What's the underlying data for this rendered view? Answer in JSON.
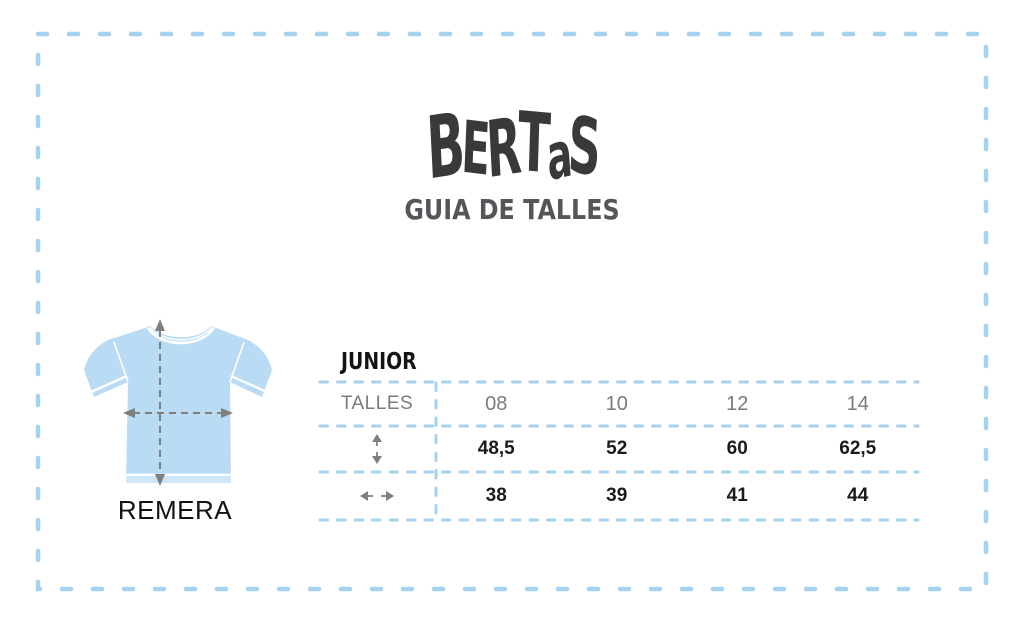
{
  "logo": {
    "brand": "BERTAS",
    "subtitle": "GUIA DE TALLES"
  },
  "product": {
    "label": "REMERA"
  },
  "size_table": {
    "section_label": "JUNIOR",
    "header_label": "TALLES",
    "sizes": [
      "08",
      "10",
      "12",
      "14"
    ],
    "rows": [
      {
        "icon": "vertical-arrows-icon",
        "values": [
          "48,5",
          "52",
          "60",
          "62,5"
        ]
      },
      {
        "icon": "horizontal-arrows-icon",
        "values": [
          "38",
          "39",
          "41",
          "44"
        ]
      }
    ]
  },
  "colors": {
    "dashed_line_blue": "#a5d2ef",
    "shirt_fill": "#b9dcf4",
    "shirt_hem_light": "#cfe7f8",
    "arrow_gray": "#7f7f7f",
    "muted_text": "#7b7b7b",
    "logo_ink": "#39393b"
  },
  "chart_data": {
    "type": "table",
    "title": "BERTAS — GUIA DE TALLES",
    "section": "JUNIOR",
    "product": "REMERA",
    "columns": [
      "08",
      "10",
      "12",
      "14"
    ],
    "row_labels": [
      "vertical-double-arrow (length)",
      "horizontal-double-arrow (width)"
    ],
    "rows": [
      [
        48.5,
        52,
        60,
        62.5
      ],
      [
        38,
        39,
        41,
        44
      ]
    ]
  }
}
